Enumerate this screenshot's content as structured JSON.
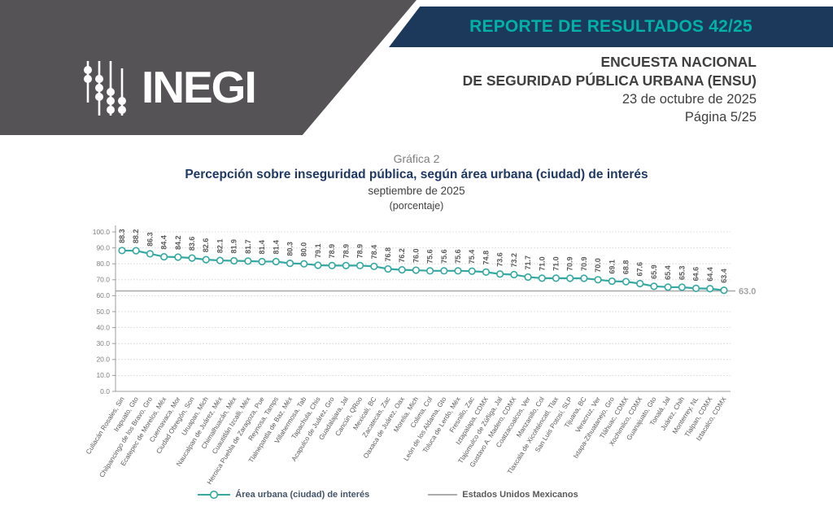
{
  "banner": {
    "report_label": "REPORTE DE RESULTADOS 42/25"
  },
  "logo": {
    "name": "INEGI"
  },
  "header": {
    "line1": "ENCUESTA NACIONAL",
    "line2": "DE SEGURIDAD PÚBLICA URBANA (ENSU)",
    "date": "23 de octubre de 2025",
    "page": "Página 5/25"
  },
  "chart_title": {
    "graphic_label": "Gráfica 2",
    "title": "Percepción sobre inseguridad pública, según área urbana (ciudad) de interés",
    "subtitle": "septiembre de 2025",
    "unit": "(porcentaje)"
  },
  "colors": {
    "banner-gray": "#565356",
    "banner-navy": "#1C395C",
    "accent-teal": "#00B1A7",
    "series-teal": "#35A8A2",
    "title-navy": "#1F3864",
    "reference-gray": "#ADADAD",
    "text-dark": "#404040",
    "text-gray": "#595959"
  },
  "chart_data": {
    "type": "line",
    "title": "Percepción sobre inseguridad pública, según área urbana (ciudad) de interés",
    "subtitle": "septiembre de 2025 (porcentaje)",
    "grid": true,
    "legend_position": "bottom",
    "ylim": [
      0,
      100
    ],
    "ytick_step": 10,
    "ytick_labels": [
      "100.0",
      "90.0",
      "80.0",
      "70.0",
      "60.0",
      "50.0",
      "40.0",
      "30.0",
      "20.0",
      "10.0",
      "0.0"
    ],
    "categories": [
      "Culiacán Rosales, Sin",
      "Irapuato, Gto",
      "Chilpancingo de los Bravo, Gro",
      "Ecatepec de Morelos, Méx",
      "Cuernavaca, Mor",
      "Ciudad Obregón, Son",
      "Uruapan, Mich",
      "Naucalpan de Juárez, Méx",
      "Chimalhuacán, Méx",
      "Cuautitlán Izcalli, Méx",
      "Heroica Puebla de Zaragoza, Pue",
      "Reynosa, Tamps",
      "Tlalnepantla de Baz, Méx",
      "Villahermosa, Tab",
      "Tapachula, Chis",
      "Acapulco de Juárez, Gro",
      "Guadalajara, Jal",
      "Cancún, QRoo",
      "Mexicali, BC",
      "Zacatecas, Zac",
      "Oaxaca de Juárez, Oax",
      "Morelia, Mich",
      "Colima, Col",
      "León de los Aldama, Gto",
      "Toluca de Lerdo, Méx",
      "Fresnillo, Zac",
      "Iztapalapa, CDMX",
      "Tlajomulco de Zúñiga, Jal",
      "Gustavo A. Madero, CDMX",
      "Coatzacoalcos, Ver",
      "Manzanillo, Col",
      "Tlaxcala de Xicohténcatl, Tlax",
      "San Luis Potosí, SLP",
      "Tijuana, BC",
      "Veracruz, Ver",
      "Ixtapa-Zihuatanejo, Gro",
      "Tláhuac, CDMX",
      "Xochimilco, CDMX",
      "Guanajuato, Gto",
      "Tonalá, Jal",
      "Juárez, Chih",
      "Monterrey, NL",
      "Tlalpan, CDMX",
      "Iztacalco, CDMX"
    ],
    "series": [
      {
        "name": "Área urbana (ciudad) de interés",
        "values": [
          88.3,
          88.2,
          86.3,
          84.4,
          84.2,
          83.6,
          82.6,
          82.1,
          81.9,
          81.7,
          81.4,
          81.4,
          80.3,
          80.0,
          79.1,
          78.9,
          78.9,
          78.9,
          78.4,
          76.8,
          76.2,
          76.0,
          75.6,
          75.6,
          75.6,
          75.4,
          74.8,
          73.6,
          73.2,
          71.7,
          71.0,
          71.0,
          70.9,
          70.9,
          70.0,
          69.1,
          68.8,
          67.6,
          65.9,
          65.4,
          65.3,
          64.6,
          64.4,
          63.4
        ]
      }
    ],
    "reference_line": {
      "label": "Estados Unidos Mexicanos",
      "value": 63.0,
      "value_label": "63.0"
    },
    "colors": {
      "series": "#35A8A2",
      "reference": "#ADADAD"
    }
  }
}
